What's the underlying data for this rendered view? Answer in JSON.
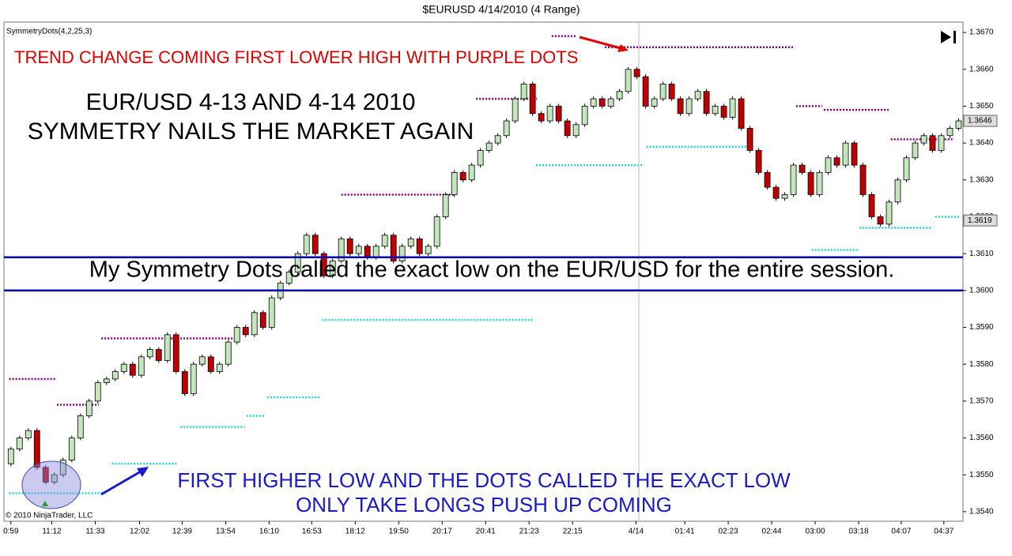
{
  "chart_data": {
    "type": "candlestick",
    "title": "$EURUSD  4/14/2010 (4 Range)",
    "indicator_label": "SymmetryDots(4,2,25,3)",
    "copyright": "© 2010 NinjaTrader, LLC",
    "annotations": {
      "red_note": "TREND CHANGE COMING FIRST LOWER HIGH WITH PURPLE DOTS",
      "headline": [
        "EUR/USD 4-13 AND 4-14 2010",
        "SYMMETRY NAILS THE MARKET AGAIN"
      ],
      "middle_note": "My Symmetry Dots called the exact low on the EUR/USD for the entire session.",
      "blue_note": [
        "FIRST HIGHER LOW AND THE DOTS CALLED THE EXACT LOW",
        "ONLY TAKE LONGS PUSH UP COMING"
      ]
    },
    "up_color": "#c4e6bc",
    "down_color": "#c00000",
    "open": [
      1.3553,
      1.3557,
      1.356,
      1.3562,
      1.3552,
      1.3548,
      1.355,
      1.3554,
      1.356,
      1.3566,
      1.357,
      1.3575,
      1.3576,
      1.3578,
      1.358,
      1.3577,
      1.3582,
      1.3584,
      1.3581,
      1.3588,
      1.3578,
      1.3572,
      1.358,
      1.3582,
      1.3578,
      1.358,
      1.3586,
      1.359,
      1.3588,
      1.3594,
      1.359,
      1.3598,
      1.3602,
      1.3605,
      1.361,
      1.3615,
      1.361,
      1.3604,
      1.3608,
      1.3614,
      1.361,
      1.3612,
      1.3609,
      1.3612,
      1.3615,
      1.3608,
      1.3612,
      1.3614,
      1.361,
      1.3612,
      1.362,
      1.3626,
      1.3632,
      1.363,
      1.3634,
      1.3638,
      1.364,
      1.3642,
      1.3646,
      1.3652,
      1.3656,
      1.3648,
      1.3646,
      1.365,
      1.3646,
      1.3642,
      1.3645,
      1.365,
      1.3652,
      1.365,
      1.3652,
      1.3654,
      1.366,
      1.3658,
      1.365,
      1.3652,
      1.3656,
      1.3652,
      1.3648,
      1.3652,
      1.3654,
      1.3648,
      1.365,
      1.3647,
      1.3652,
      1.3644,
      1.3638,
      1.3632,
      1.3628,
      1.3625,
      1.3626,
      1.3634,
      1.3632,
      1.3626,
      1.3632,
      1.3636,
      1.3634,
      1.364,
      1.3634,
      1.3626,
      1.362,
      1.3618,
      1.3624,
      1.363,
      1.3636,
      1.364,
      1.3642,
      1.3638,
      1.3642,
      1.3644
    ],
    "close": [
      1.3557,
      1.356,
      1.3562,
      1.3552,
      1.3548,
      1.355,
      1.3554,
      1.356,
      1.3566,
      1.357,
      1.3575,
      1.3576,
      1.3578,
      1.358,
      1.3577,
      1.3582,
      1.3584,
      1.3581,
      1.3588,
      1.3578,
      1.3572,
      1.358,
      1.3582,
      1.3578,
      1.358,
      1.3586,
      1.359,
      1.3588,
      1.3594,
      1.359,
      1.3598,
      1.3602,
      1.3605,
      1.361,
      1.3615,
      1.361,
      1.3604,
      1.3608,
      1.3614,
      1.361,
      1.3612,
      1.3609,
      1.3612,
      1.3615,
      1.3608,
      1.3612,
      1.3614,
      1.361,
      1.3612,
      1.362,
      1.3626,
      1.3632,
      1.363,
      1.3634,
      1.3638,
      1.364,
      1.3642,
      1.3646,
      1.3652,
      1.3656,
      1.3648,
      1.3646,
      1.365,
      1.3646,
      1.3642,
      1.3645,
      1.365,
      1.3652,
      1.365,
      1.3652,
      1.3654,
      1.366,
      1.3658,
      1.365,
      1.3652,
      1.3656,
      1.3652,
      1.3648,
      1.3652,
      1.3654,
      1.3648,
      1.365,
      1.3647,
      1.3652,
      1.3644,
      1.3638,
      1.3632,
      1.3628,
      1.3625,
      1.3626,
      1.3634,
      1.3632,
      1.3626,
      1.3632,
      1.3636,
      1.3634,
      1.364,
      1.3634,
      1.3626,
      1.362,
      1.3618,
      1.3624,
      1.363,
      1.3636,
      1.364,
      1.3642,
      1.3638,
      1.3642,
      1.3644,
      1.3646
    ],
    "dot_series": [
      {
        "color": "#800080",
        "segments": [
          {
            "x": [
              -0.2,
              5.1
            ],
            "y": 1.3576
          },
          {
            "x": [
              5.3,
              10.1
            ],
            "y": 1.3569
          },
          {
            "x": [
              10.4,
              25.5
            ],
            "y": 1.3587
          },
          {
            "x": [
              28,
              36
            ],
            "y": 1.3609
          },
          {
            "x": [
              38,
              51
            ],
            "y": 1.3626
          },
          {
            "x": [
              53.5,
              60.5
            ],
            "y": 1.3652
          },
          {
            "x": [
              62.2,
              65
            ],
            "y": 1.3669
          },
          {
            "x": [
              68.3,
              90.1
            ],
            "y": 1.3666
          },
          {
            "x": [
              90.3,
              93.3
            ],
            "y": 1.365
          },
          {
            "x": [
              93.5,
              101
            ],
            "y": 1.3649
          },
          {
            "x": [
              101.2,
              108.3
            ],
            "y": 1.3641
          }
        ]
      },
      {
        "color": "#22d3dd",
        "segments": [
          {
            "x": [
              -0.2,
              10.5
            ],
            "y": 1.3545
          },
          {
            "x": [
              11.6,
              19.2
            ],
            "y": 1.3553
          },
          {
            "x": [
              19.5,
              26.9
            ],
            "y": 1.3563
          },
          {
            "x": [
              27.1,
              29.2
            ],
            "y": 1.3566
          },
          {
            "x": [
              29.5,
              35.5
            ],
            "y": 1.3571
          },
          {
            "x": [
              35.8,
              60.1
            ],
            "y": 1.3592
          },
          {
            "x": [
              60.4,
              72.8
            ],
            "y": 1.3634
          },
          {
            "x": [
              73.1,
              84.6
            ],
            "y": 1.3639
          },
          {
            "x": [
              92.1,
              97.4
            ],
            "y": 1.3611
          },
          {
            "x": [
              97.6,
              106
            ],
            "y": 1.3617
          },
          {
            "x": [
              106.3,
              109.2
            ],
            "y": 1.362
          }
        ]
      }
    ],
    "hlines": [
      1.3609,
      1.36
    ],
    "hline_color": "#0000b4",
    "price_markers": [
      1.3646,
      1.3619
    ],
    "xlim": [
      -0.8,
      109.5
    ],
    "ylim": [
      1.35374,
      1.36728
    ],
    "xticks": [
      {
        "value": 0,
        "label": "0:59"
      },
      {
        "value": 4.7,
        "label": "11:12"
      },
      {
        "value": 9.7,
        "label": "11:33"
      },
      {
        "value": 14.8,
        "label": "12:02"
      },
      {
        "value": 19.7,
        "label": "12:39"
      },
      {
        "value": 24.7,
        "label": "13:54"
      },
      {
        "value": 29.7,
        "label": "16:10"
      },
      {
        "value": 34.6,
        "label": "16:53"
      },
      {
        "value": 39.6,
        "label": "18:12"
      },
      {
        "value": 44.6,
        "label": "19:50"
      },
      {
        "value": 49.6,
        "label": "20:17"
      },
      {
        "value": 54.6,
        "label": "20:41"
      },
      {
        "value": 59.6,
        "label": "21:23"
      },
      {
        "value": 64.6,
        "label": "22:15"
      },
      {
        "value": 71.9,
        "label": "4/14"
      },
      {
        "value": 77.5,
        "label": "01:41"
      },
      {
        "value": 82.5,
        "label": "02:23"
      },
      {
        "value": 87.5,
        "label": "02:44"
      },
      {
        "value": 92.5,
        "label": "03:00"
      },
      {
        "value": 97.5,
        "label": "03:18"
      },
      {
        "value": 102.4,
        "label": "04:07"
      },
      {
        "value": 107.3,
        "label": "04:37"
      }
    ],
    "yticks": [
      {
        "value": 1.354,
        "label": "1.3540"
      },
      {
        "value": 1.355,
        "label": "1.3550"
      },
      {
        "value": 1.356,
        "label": "1.3560"
      },
      {
        "value": 1.357,
        "label": "1.3570"
      },
      {
        "value": 1.358,
        "label": "1.3580"
      },
      {
        "value": 1.359,
        "label": "1.3590"
      },
      {
        "value": 1.36,
        "label": "1.3600"
      },
      {
        "value": 1.361,
        "label": "1.3610"
      },
      {
        "value": 1.362,
        "label": "1.3620"
      },
      {
        "value": 1.363,
        "label": "1.3630"
      },
      {
        "value": 1.364,
        "label": "1.3640"
      },
      {
        "value": 1.365,
        "label": "1.3650"
      },
      {
        "value": 1.366,
        "label": "1.3660"
      },
      {
        "value": 1.367,
        "label": "1.3670"
      }
    ]
  }
}
